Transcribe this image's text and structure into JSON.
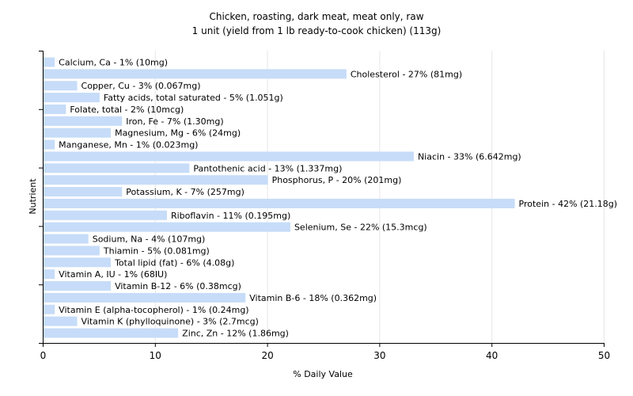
{
  "chart_data": {
    "type": "bar",
    "orientation": "horizontal",
    "title_lines": [
      "Chicken, roasting, dark meat, meat only, raw",
      "1 unit (yield from 1 lb ready-to-cook chicken) (113g)"
    ],
    "xlabel": "% Daily Value",
    "ylabel": "Nutrient",
    "xlim": [
      0,
      50
    ],
    "xticks": [
      0,
      10,
      20,
      30,
      40,
      50
    ],
    "grid": true,
    "bar_color": "#c6dcf8",
    "bars": [
      {
        "label": "Calcium, Ca - 1% (10mg)",
        "value": 1
      },
      {
        "label": "Cholesterol - 27% (81mg)",
        "value": 27
      },
      {
        "label": "Copper, Cu - 3% (0.067mg)",
        "value": 3
      },
      {
        "label": "Fatty acids, total saturated - 5% (1.051g)",
        "value": 5
      },
      {
        "label": "Folate, total - 2% (10mcg)",
        "value": 2
      },
      {
        "label": "Iron, Fe - 7% (1.30mg)",
        "value": 7
      },
      {
        "label": "Magnesium, Mg - 6% (24mg)",
        "value": 6
      },
      {
        "label": "Manganese, Mn - 1% (0.023mg)",
        "value": 1
      },
      {
        "label": "Niacin - 33% (6.642mg)",
        "value": 33
      },
      {
        "label": "Pantothenic acid - 13% (1.337mg)",
        "value": 13
      },
      {
        "label": "Phosphorus, P - 20% (201mg)",
        "value": 20
      },
      {
        "label": "Potassium, K - 7% (257mg)",
        "value": 7
      },
      {
        "label": "Protein - 42% (21.18g)",
        "value": 42
      },
      {
        "label": "Riboflavin - 11% (0.195mg)",
        "value": 11
      },
      {
        "label": "Selenium, Se - 22% (15.3mcg)",
        "value": 22
      },
      {
        "label": "Sodium, Na - 4% (107mg)",
        "value": 4
      },
      {
        "label": "Thiamin - 5% (0.081mg)",
        "value": 5
      },
      {
        "label": "Total lipid (fat) - 6% (4.08g)",
        "value": 6
      },
      {
        "label": "Vitamin A, IU - 1% (68IU)",
        "value": 1
      },
      {
        "label": "Vitamin B-12 - 6% (0.38mcg)",
        "value": 6
      },
      {
        "label": "Vitamin B-6 - 18% (0.362mg)",
        "value": 18
      },
      {
        "label": "Vitamin E (alpha-tocopherol) - 1% (0.24mg)",
        "value": 1
      },
      {
        "label": "Vitamin K (phylloquinone) - 3% (2.7mcg)",
        "value": 3
      },
      {
        "label": "Zinc, Zn - 12% (1.86mg)",
        "value": 12
      }
    ]
  }
}
